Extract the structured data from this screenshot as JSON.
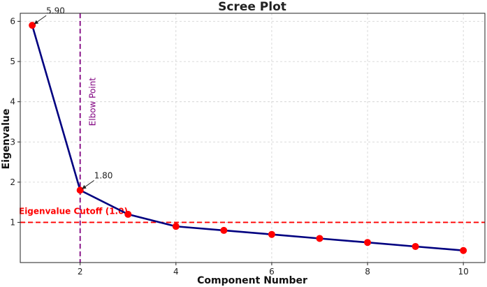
{
  "chart_data": {
    "type": "line",
    "title": "Scree Plot",
    "xlabel": "Component Number",
    "ylabel": "Eigenvalue",
    "x": [
      1,
      2,
      3,
      4,
      5,
      6,
      7,
      8,
      9,
      10
    ],
    "series": [
      {
        "values": [
          5.9,
          1.8,
          1.2,
          0.9,
          0.8,
          0.7,
          0.6,
          0.5,
          0.4,
          0.3
        ]
      }
    ],
    "xlim": [
      0.75,
      10.45
    ],
    "ylim": [
      0,
      6.2
    ],
    "xticks": [
      2,
      4,
      6,
      8,
      10
    ],
    "yticks": [
      1,
      2,
      3,
      4,
      5,
      6
    ],
    "grid": true,
    "reference_lines": {
      "cutoff": {
        "orientation": "horizontal",
        "value": 1.0,
        "label": "Eigenvalue Cutoff (1.0)",
        "color": "#ff0000"
      },
      "elbow": {
        "orientation": "vertical",
        "value": 2,
        "label": "Elbow Point",
        "color": "#800080"
      }
    },
    "annotations": [
      {
        "x": 1,
        "y": 5.9,
        "text": "5.90"
      },
      {
        "x": 2,
        "y": 1.8,
        "text": "1.80"
      }
    ],
    "colors": {
      "line": "#000080",
      "marker": "#ff0000"
    }
  }
}
